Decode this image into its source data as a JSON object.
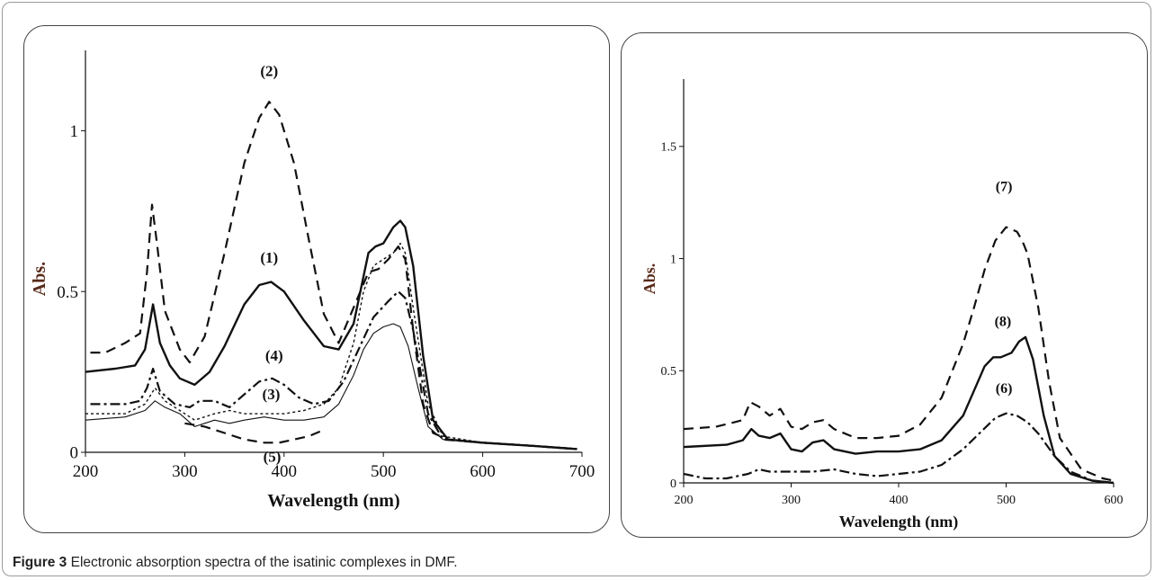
{
  "caption": {
    "label": "Figure 3",
    "text": "Electronic absorption spectra of the isatinic complexes in DMF",
    "end": "."
  },
  "chart_data": [
    {
      "type": "line",
      "xlabel": "Wavelength (nm)",
      "ylabel": "Abs.",
      "xlim": [
        200,
        700
      ],
      "ylim": [
        0,
        1.25
      ],
      "xticks": [
        200,
        300,
        400,
        500,
        600,
        700
      ],
      "yticks": [
        0,
        0.5,
        1
      ],
      "xtick_labels": [
        "200",
        "300",
        "400",
        "500",
        "600",
        "700"
      ],
      "ytick_labels": [
        "0",
        "0.5",
        "1"
      ],
      "series": [
        {
          "name": "(2)",
          "style": "dashed",
          "x": [
            205,
            220,
            240,
            255,
            262,
            267,
            272,
            280,
            295,
            305,
            320,
            340,
            360,
            375,
            385,
            395,
            410,
            425,
            440,
            455,
            470,
            485,
            495,
            505,
            515,
            522,
            530,
            540,
            550,
            565,
            600,
            650,
            695
          ],
          "y": [
            0.31,
            0.31,
            0.34,
            0.37,
            0.56,
            0.77,
            0.65,
            0.44,
            0.32,
            0.28,
            0.36,
            0.62,
            0.9,
            1.04,
            1.09,
            1.05,
            0.9,
            0.66,
            0.43,
            0.34,
            0.45,
            0.56,
            0.57,
            0.6,
            0.64,
            0.6,
            0.38,
            0.15,
            0.06,
            0.04,
            0.03,
            0.02,
            0.01
          ]
        },
        {
          "name": "(1)",
          "style": "solid",
          "x": [
            200,
            230,
            250,
            260,
            268,
            275,
            285,
            295,
            310,
            325,
            340,
            360,
            375,
            387,
            400,
            420,
            440,
            455,
            470,
            485,
            492,
            500,
            510,
            517,
            522,
            530,
            540,
            550,
            565,
            600,
            650,
            695
          ],
          "y": [
            0.25,
            0.26,
            0.27,
            0.32,
            0.46,
            0.34,
            0.27,
            0.23,
            0.21,
            0.25,
            0.33,
            0.46,
            0.52,
            0.53,
            0.5,
            0.41,
            0.33,
            0.32,
            0.4,
            0.62,
            0.64,
            0.65,
            0.7,
            0.72,
            0.7,
            0.58,
            0.3,
            0.1,
            0.04,
            0.03,
            0.02,
            0.01
          ]
        },
        {
          "name": "(4)",
          "style": "dashdot",
          "x": [
            205,
            240,
            255,
            262,
            268,
            275,
            290,
            305,
            315,
            330,
            345,
            360,
            375,
            388,
            400,
            415,
            430,
            445,
            460,
            475,
            490,
            505,
            515,
            522,
            530,
            545,
            560,
            600,
            650,
            695
          ],
          "y": [
            0.15,
            0.15,
            0.16,
            0.2,
            0.26,
            0.19,
            0.15,
            0.14,
            0.16,
            0.16,
            0.14,
            0.18,
            0.22,
            0.23,
            0.21,
            0.17,
            0.15,
            0.16,
            0.22,
            0.32,
            0.42,
            0.47,
            0.5,
            0.48,
            0.38,
            0.12,
            0.04,
            0.03,
            0.02,
            0.01
          ]
        },
        {
          "name": "(3)",
          "style": "dotted",
          "x": [
            200,
            240,
            260,
            270,
            280,
            295,
            310,
            330,
            345,
            360,
            380,
            400,
            420,
            440,
            455,
            470,
            480,
            490,
            500,
            510,
            517,
            522,
            530,
            545,
            560,
            600,
            650,
            695
          ],
          "y": [
            0.12,
            0.12,
            0.15,
            0.2,
            0.16,
            0.13,
            0.1,
            0.12,
            0.13,
            0.12,
            0.12,
            0.12,
            0.13,
            0.15,
            0.2,
            0.34,
            0.5,
            0.58,
            0.6,
            0.62,
            0.65,
            0.62,
            0.45,
            0.15,
            0.05,
            0.03,
            0.02,
            0.01
          ]
        },
        {
          "name": "(5)",
          "style": "dashed",
          "x": [
            300,
            320,
            340,
            360,
            380,
            395,
            410,
            425,
            440
          ],
          "y": [
            0.09,
            0.08,
            0.06,
            0.04,
            0.03,
            0.03,
            0.04,
            0.05,
            0.07
          ]
        },
        {
          "name": "",
          "style": "thin",
          "x": [
            200,
            240,
            260,
            270,
            280,
            295,
            310,
            320,
            330,
            345,
            360,
            380,
            400,
            420,
            440,
            455,
            470,
            480,
            490,
            500,
            510,
            517,
            525,
            535,
            545,
            560,
            600,
            650,
            695
          ],
          "y": [
            0.1,
            0.11,
            0.13,
            0.16,
            0.14,
            0.12,
            0.08,
            0.09,
            0.1,
            0.09,
            0.1,
            0.11,
            0.1,
            0.1,
            0.11,
            0.15,
            0.24,
            0.32,
            0.37,
            0.39,
            0.4,
            0.39,
            0.33,
            0.2,
            0.08,
            0.04,
            0.03,
            0.02,
            0.01
          ]
        }
      ],
      "annotations": [
        {
          "text": "(2)",
          "x": 385,
          "y": 1.17
        },
        {
          "text": "(1)",
          "x": 385,
          "y": 0.59
        },
        {
          "text": "(4)",
          "x": 390,
          "y": 0.285
        },
        {
          "text": "(3)",
          "x": 387,
          "y": 0.165
        },
        {
          "text": "(5)",
          "x": 388,
          "y": -0.03
        }
      ]
    },
    {
      "type": "line",
      "xlabel": "Wavelength (nm)",
      "ylabel": "Abs.",
      "xlim": [
        200,
        600
      ],
      "ylim": [
        0,
        1.8
      ],
      "xticks": [
        200,
        300,
        400,
        500,
        600
      ],
      "yticks": [
        0,
        0.5,
        1,
        1.5
      ],
      "xtick_labels": [
        "200",
        "300",
        "400",
        "500",
        "600"
      ],
      "ytick_labels": [
        "0",
        "0.5",
        "1",
        "1.5"
      ],
      "series": [
        {
          "name": "(7)",
          "style": "dashed",
          "x": [
            200,
            230,
            255,
            262,
            270,
            280,
            290,
            300,
            310,
            320,
            330,
            340,
            360,
            380,
            400,
            420,
            440,
            460,
            470,
            480,
            490,
            500,
            510,
            515,
            520,
            530,
            540,
            550,
            570,
            590,
            600
          ],
          "y": [
            0.24,
            0.25,
            0.28,
            0.36,
            0.34,
            0.3,
            0.33,
            0.25,
            0.24,
            0.27,
            0.28,
            0.24,
            0.2,
            0.2,
            0.21,
            0.26,
            0.38,
            0.62,
            0.78,
            0.95,
            1.08,
            1.14,
            1.12,
            1.08,
            1.02,
            0.78,
            0.45,
            0.2,
            0.06,
            0.02,
            0.01
          ]
        },
        {
          "name": "(8)",
          "style": "solid",
          "x": [
            200,
            240,
            255,
            263,
            270,
            280,
            290,
            300,
            310,
            320,
            330,
            340,
            360,
            380,
            400,
            420,
            440,
            460,
            470,
            480,
            488,
            495,
            505,
            512,
            518,
            525,
            535,
            545,
            560,
            580,
            600
          ],
          "y": [
            0.16,
            0.17,
            0.19,
            0.24,
            0.21,
            0.2,
            0.22,
            0.15,
            0.14,
            0.18,
            0.19,
            0.15,
            0.13,
            0.14,
            0.14,
            0.15,
            0.19,
            0.3,
            0.41,
            0.52,
            0.56,
            0.56,
            0.58,
            0.63,
            0.65,
            0.55,
            0.3,
            0.12,
            0.04,
            0.01,
            0.0
          ]
        },
        {
          "name": "(6)",
          "style": "dashdot",
          "x": [
            200,
            220,
            240,
            260,
            270,
            280,
            300,
            320,
            340,
            360,
            380,
            400,
            420,
            440,
            460,
            475,
            490,
            500,
            510,
            520,
            530,
            545,
            560,
            580,
            600
          ],
          "y": [
            0.04,
            0.02,
            0.02,
            0.04,
            0.06,
            0.05,
            0.05,
            0.05,
            0.06,
            0.04,
            0.03,
            0.04,
            0.05,
            0.08,
            0.15,
            0.22,
            0.29,
            0.31,
            0.3,
            0.27,
            0.22,
            0.12,
            0.05,
            0.01,
            0.0
          ]
        }
      ],
      "annotations": [
        {
          "text": "(7)",
          "x": 498,
          "y": 1.3
        },
        {
          "text": "(8)",
          "x": 497,
          "y": 0.7
        },
        {
          "text": "(6)",
          "x": 498,
          "y": 0.4
        }
      ]
    }
  ]
}
